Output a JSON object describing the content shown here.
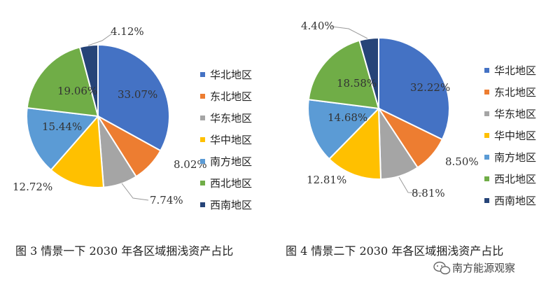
{
  "colors": [
    "#4472c4",
    "#ed7d31",
    "#a5a5a5",
    "#ffc000",
    "#5b9bd5",
    "#70ad47",
    "#264478"
  ],
  "chart_data": [
    {
      "type": "pie",
      "title": "",
      "caption": "图 3 情景一下 2030 年各区域捆浅资产占比",
      "categories": [
        "华北地区",
        "东北地区",
        "华东地区",
        "华中地区",
        "南方地区",
        "西北地区",
        "西南地区"
      ],
      "values": [
        33.07,
        8.02,
        7.74,
        12.72,
        15.44,
        19.06,
        4.12
      ],
      "labels": [
        "33.07%",
        "8.02%",
        "7.74%",
        "12.72%",
        "15.44%",
        "19.06%",
        "4.12%"
      ],
      "legend": "right"
    },
    {
      "type": "pie",
      "title": "",
      "caption": "图 4 情景二下 2030 年各区域捆浅资产占比",
      "categories": [
        "华北地区",
        "东北地区",
        "华东地区",
        "华中地区",
        "南方地区",
        "西北地区",
        "西南地区"
      ],
      "values": [
        32.22,
        8.5,
        8.81,
        12.81,
        14.68,
        18.58,
        4.4
      ],
      "labels": [
        "32.22%",
        "8.50%",
        "8.81%",
        "12.81%",
        "14.68%",
        "18.58%",
        "4.40%"
      ],
      "legend": "right"
    }
  ],
  "watermark": "南方能源观察",
  "watermark_icon": "wechat-icon"
}
